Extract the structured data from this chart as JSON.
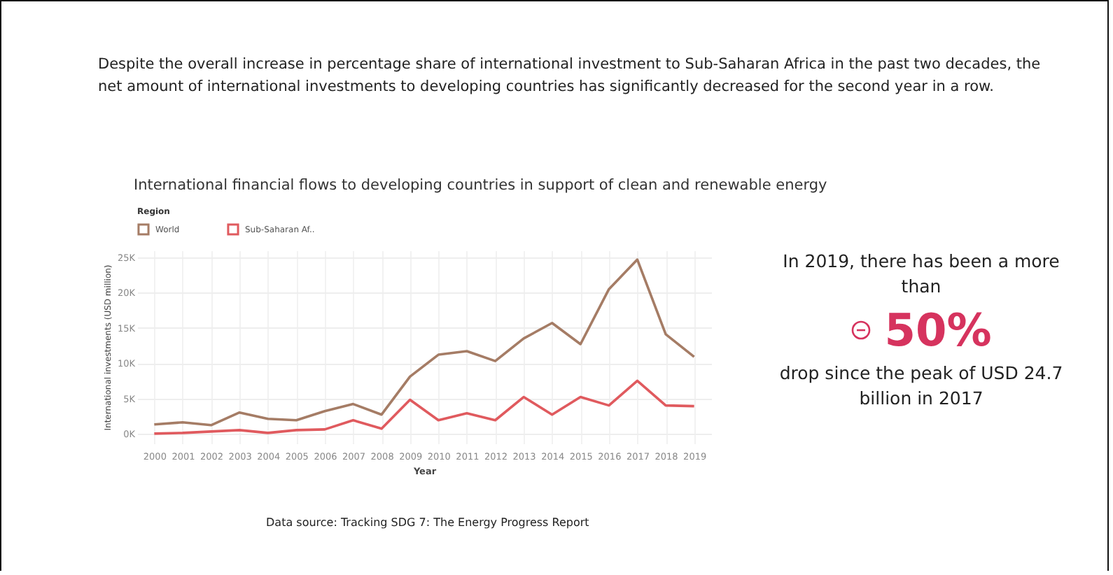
{
  "chart_data": {
    "type": "line",
    "title": "International financial flows to developing countries in support of clean and renewable energy",
    "xlabel": "Year",
    "ylabel": "International investments (USD million)",
    "legend_title": "Region",
    "categories": [
      "2000",
      "2001",
      "2002",
      "2003",
      "2004",
      "2005",
      "2006",
      "2007",
      "2008",
      "2009",
      "2010",
      "2011",
      "2012",
      "2013",
      "2014",
      "2015",
      "2016",
      "2017",
      "2018",
      "2019"
    ],
    "series": [
      {
        "name": "World",
        "color": "#a57c65",
        "values": [
          1300,
          1600,
          1200,
          3000,
          2100,
          1900,
          3200,
          4200,
          2700,
          8100,
          11200,
          11700,
          10300,
          13500,
          15700,
          12700,
          20500,
          24700,
          14100,
          10900
        ]
      },
      {
        "name": "Sub-Saharan Af..",
        "color": "#e05a5e",
        "values": [
          0,
          100,
          300,
          500,
          100,
          500,
          600,
          1900,
          700,
          4800,
          1900,
          2900,
          1900,
          5200,
          2700,
          5200,
          4000,
          7500,
          4000,
          3900
        ]
      }
    ],
    "ylim": [
      -1400,
      26000
    ],
    "yticks": [
      {
        "value": 0,
        "label": "0K"
      },
      {
        "value": 5000,
        "label": "5K"
      },
      {
        "value": 10000,
        "label": "10K"
      },
      {
        "value": 15000,
        "label": "15K"
      },
      {
        "value": 20000,
        "label": "20K"
      },
      {
        "value": 25000,
        "label": "25K"
      }
    ],
    "grid": true,
    "legend": "top left",
    "annotations": [
      "Despite the overall increase in percentage share of international investment to Sub-Saharan Africa in the past two decades, the net amount of international investments to developing countries has significantly decreased for the second year in a row.",
      "In 2019, there has been a more than",
      "50%",
      "drop since the peak of USD 24.7 billion in 2017",
      "Data source: Tracking SDG 7: The Energy Progress Report"
    ]
  }
}
